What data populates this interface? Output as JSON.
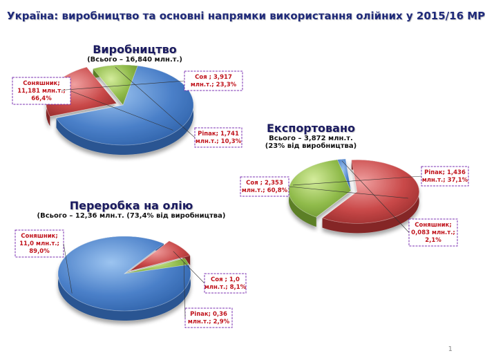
{
  "title": "Україна: виробництво та основні напрямки використання олійних у 2015/16 МР",
  "page_number": "1",
  "colors": {
    "sunflower": "#4a7fc8",
    "soy": "#c84848",
    "rapeseed": "#8fba4a",
    "label_text": "#c0141c",
    "label_border": "#7a2fb0",
    "heading": "#1a1a60"
  },
  "chart_data": [
    {
      "type": "pie",
      "title": "Виробництво",
      "subtitle": "(Всього – 16,840 млн.т.)",
      "subtitle2": "",
      "slices": [
        {
          "name": "Соняшник",
          "value": 11.181,
          "percent": 66.4,
          "label_lines": [
            "Соняшник;",
            "11,181 млн.т.;",
            "66,4%"
          ]
        },
        {
          "name": "Соя",
          "value": 3.917,
          "percent": 23.3,
          "label_lines": [
            "Соя ; 3,917",
            "млн.т.; 23,3%"
          ]
        },
        {
          "name": "Ріпак",
          "value": 1.741,
          "percent": 10.3,
          "label_lines": [
            "Ріпак; 1,741",
            "млн.т.; 10,3%"
          ]
        }
      ]
    },
    {
      "type": "pie",
      "title": "Експортовано",
      "subtitle": "Всього – 3,872 млн.т.",
      "subtitle2": "(23% від виробництва)",
      "slices": [
        {
          "name": "Соя",
          "value": 2.353,
          "percent": 60.8,
          "label_lines": [
            "Соя ; 2,353",
            "млн.т.; 60,8%"
          ]
        },
        {
          "name": "Ріпак",
          "value": 1.436,
          "percent": 37.1,
          "label_lines": [
            "Ріпак; 1,436",
            "млн.т.; 37,1%"
          ]
        },
        {
          "name": "Соняшник",
          "value": 0.083,
          "percent": 2.1,
          "label_lines": [
            "Соняшник;",
            "0,083 млн.т.;",
            "2,1%"
          ]
        }
      ]
    },
    {
      "type": "pie",
      "title": "Переробка на олію",
      "subtitle": "(Всього – 12,36 млн.т. (73,4% від виробництва)",
      "subtitle2": "",
      "slices": [
        {
          "name": "Соняшник",
          "value": 11.0,
          "percent": 89.0,
          "label_lines": [
            "Соняшник;",
            "11,0 млн.т.;",
            "89,0%"
          ]
        },
        {
          "name": "Соя",
          "value": 1.0,
          "percent": 8.1,
          "label_lines": [
            "Соя ; 1,0",
            "млн.т.; 8,1%"
          ]
        },
        {
          "name": "Ріпак",
          "value": 0.36,
          "percent": 2.9,
          "label_lines": [
            "Ріпак; 0,36",
            "млн.т.; 2,9%"
          ]
        }
      ]
    }
  ]
}
